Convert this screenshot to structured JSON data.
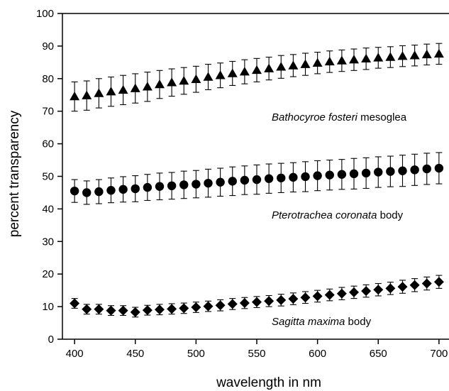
{
  "chart_data": {
    "type": "scatter",
    "xlabel": "wavelength in nm",
    "ylabel": "percent transparency",
    "xlim": [
      390,
      710
    ],
    "ylim": [
      0,
      100
    ],
    "x_ticks": [
      400,
      450,
      500,
      550,
      600,
      650,
      700
    ],
    "y_ticks": [
      0,
      10,
      20,
      30,
      40,
      50,
      60,
      70,
      80,
      90,
      100
    ],
    "grid": false,
    "x": [
      400,
      410,
      420,
      430,
      440,
      450,
      460,
      470,
      480,
      490,
      500,
      510,
      520,
      530,
      540,
      550,
      560,
      570,
      580,
      590,
      600,
      610,
      620,
      630,
      640,
      650,
      660,
      670,
      680,
      690,
      700
    ],
    "series": [
      {
        "name_italic": "Bathocyroe fosteri",
        "name_rest": " mesoglea",
        "marker": "triangle",
        "values": [
          74.5,
          74.8,
          75.5,
          76.0,
          76.5,
          77.0,
          77.5,
          78.2,
          78.8,
          79.3,
          79.8,
          80.5,
          81.0,
          81.6,
          82.1,
          82.6,
          83.1,
          83.6,
          84.0,
          84.4,
          84.8,
          85.2,
          85.5,
          85.8,
          86.1,
          86.4,
          86.6,
          86.9,
          87.1,
          87.4,
          87.6
        ],
        "errors": [
          4.5,
          4.5,
          4.5,
          4.5,
          4.5,
          4.5,
          4.5,
          4.3,
          4.2,
          4.1,
          4.0,
          3.9,
          3.8,
          3.7,
          3.7,
          3.6,
          3.5,
          3.5,
          3.4,
          3.4,
          3.3,
          3.3,
          3.3,
          3.3,
          3.3,
          3.2,
          3.2,
          3.2,
          3.2,
          3.2,
          3.2
        ]
      },
      {
        "name_italic": "Pterotrachea coronata",
        "name_rest": " body",
        "marker": "circle",
        "values": [
          45.5,
          45.0,
          45.3,
          45.7,
          46.0,
          46.2,
          46.6,
          46.9,
          47.1,
          47.4,
          47.6,
          47.9,
          48.2,
          48.5,
          48.8,
          49.0,
          49.3,
          49.5,
          49.7,
          49.9,
          50.2,
          50.4,
          50.6,
          50.8,
          51.0,
          51.3,
          51.5,
          51.7,
          52.0,
          52.3,
          52.5
        ],
        "errors": [
          3.5,
          3.6,
          3.7,
          3.8,
          3.9,
          4.0,
          4.0,
          4.1,
          4.1,
          4.2,
          4.2,
          4.3,
          4.3,
          4.4,
          4.4,
          4.5,
          4.5,
          4.5,
          4.5,
          4.6,
          4.6,
          4.6,
          4.6,
          4.7,
          4.7,
          4.7,
          4.7,
          4.8,
          4.8,
          4.8,
          4.8
        ]
      },
      {
        "name_italic": "Sagitta maxima",
        "name_rest": " body",
        "marker": "diamond",
        "values": [
          11.0,
          9.2,
          9.2,
          8.8,
          8.8,
          8.3,
          8.9,
          9.1,
          9.3,
          9.5,
          9.8,
          10.1,
          10.4,
          10.8,
          11.1,
          11.4,
          11.7,
          12.0,
          12.4,
          12.8,
          13.2,
          13.6,
          14.0,
          14.4,
          14.8,
          15.2,
          15.6,
          16.1,
          16.6,
          17.1,
          17.6
        ],
        "errors": [
          1.5,
          1.5,
          1.5,
          1.5,
          1.5,
          1.5,
          1.5,
          1.6,
          1.6,
          1.6,
          1.6,
          1.6,
          1.7,
          1.7,
          1.7,
          1.7,
          1.7,
          1.8,
          1.8,
          1.8,
          1.8,
          1.8,
          1.9,
          1.9,
          1.9,
          1.9,
          1.9,
          2.0,
          2.0,
          2.0,
          2.0
        ]
      }
    ]
  }
}
